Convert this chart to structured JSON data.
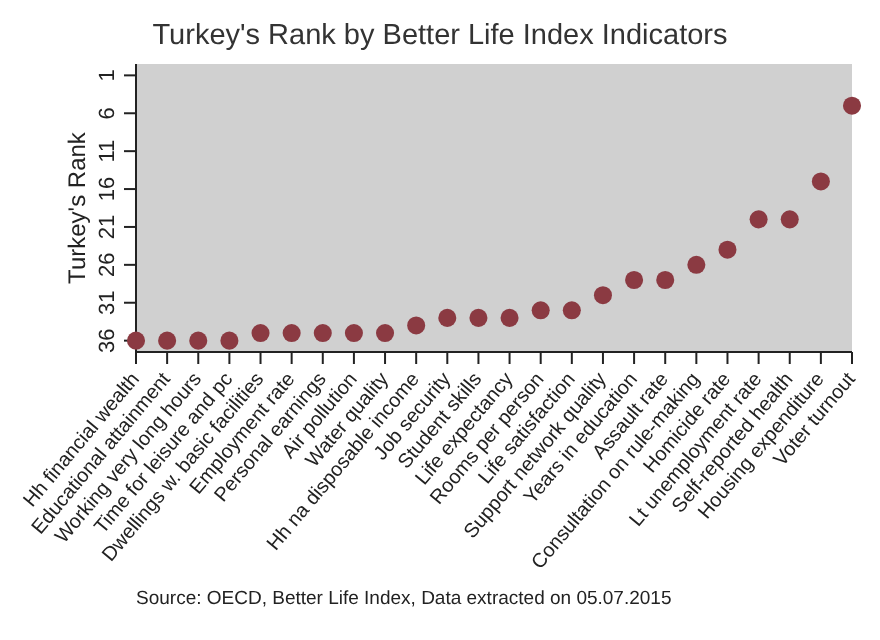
{
  "chart_data": {
    "type": "scatter",
    "title": "Turkey's Rank by Better Life Index Indicators",
    "ylabel": "Turkey's Rank",
    "categories": [
      "Hh financial wealth",
      "Educational attainment",
      "Working very long hours",
      "Time for leisure and pc",
      "Dwellings w. basic facilities",
      "Employment rate",
      "Personal earnings",
      "Air pollution",
      "Water quality",
      "Hh na disposable income",
      "Job security",
      "Student skills",
      "Life expectancy",
      "Rooms per person",
      "Life satisfaction",
      "Support network quality",
      "Years in education",
      "Assault rate",
      "Consultation on rule-making",
      "Homicide rate",
      "Lt unemployment rate",
      "Self-reported health",
      "Housing expenditure",
      "Voter turnout"
    ],
    "series": [
      {
        "color": "#8b3a42",
        "values": [
          36,
          36,
          36,
          36,
          35,
          35,
          35,
          35,
          35,
          34,
          33,
          33,
          33,
          32,
          32,
          30,
          28,
          28,
          26,
          24,
          20,
          20,
          15,
          5
        ]
      }
    ],
    "ylim": [
      37.5,
      -0.5
    ],
    "yticks": [
      1,
      6,
      11,
      16,
      21,
      26,
      31,
      36
    ],
    "grid": false,
    "legend": false,
    "marker": "circle",
    "annotations": [
      "Source: OECD, Better Life Index, Data extracted on 05.07.2015"
    ]
  }
}
